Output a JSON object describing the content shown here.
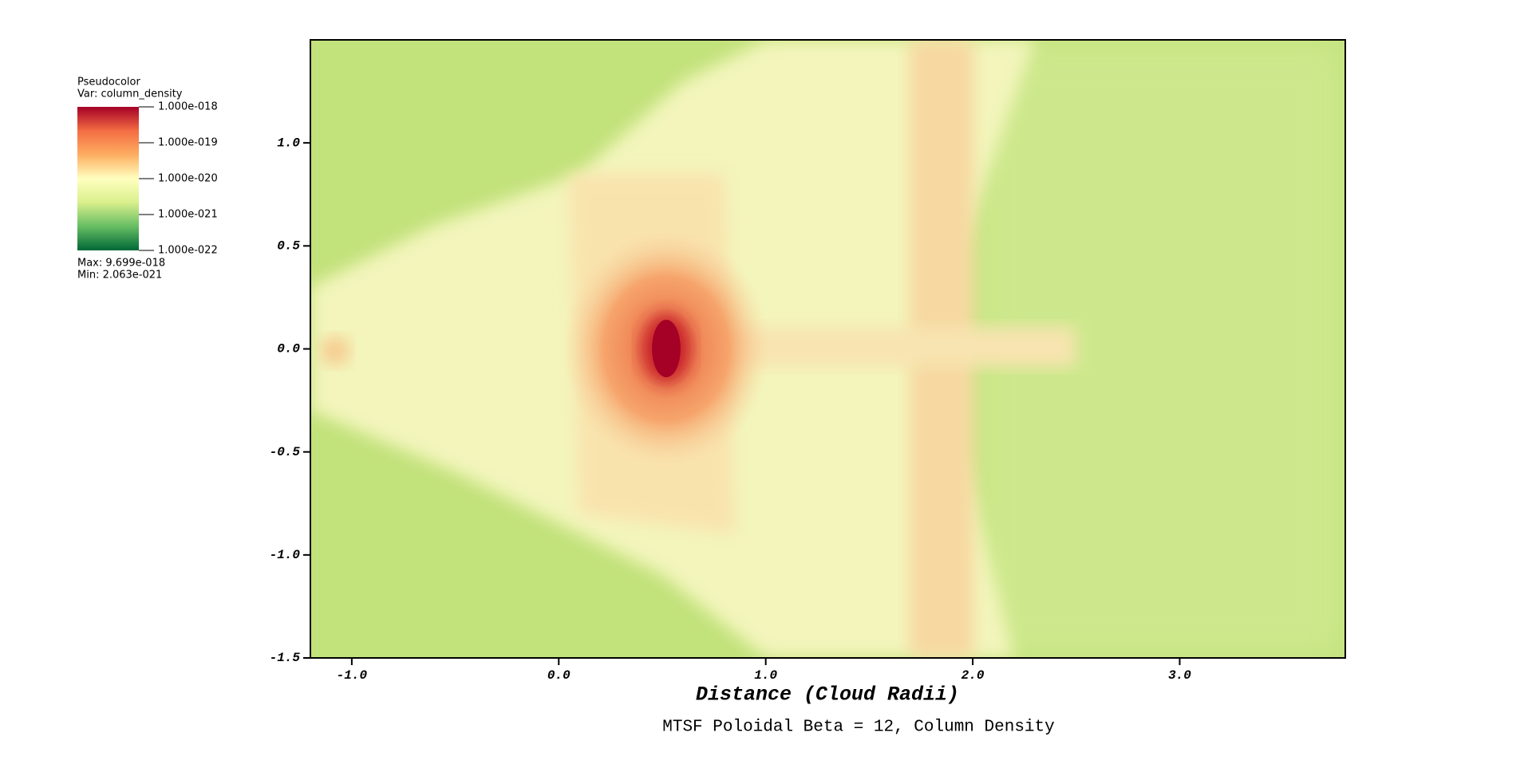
{
  "chart_data": {
    "type": "pseudocolor",
    "title": "MTSF Poloidal Beta = 12, Column Density",
    "x_label": "Distance (Cloud Radii)",
    "xlim": [
      -1.2,
      3.8
    ],
    "ylim": [
      -1.5,
      1.5
    ],
    "xticks": [
      {
        "value": -1,
        "label": "-1.0"
      },
      {
        "value": 0,
        "label": "0.0"
      },
      {
        "value": 1,
        "label": "1.0"
      },
      {
        "value": 2,
        "label": "2.0"
      },
      {
        "value": 3,
        "label": "3.0"
      }
    ],
    "yticks": [
      {
        "value": -1.5,
        "label": "-1.5"
      },
      {
        "value": -1,
        "label": "-1.0"
      },
      {
        "value": -0.5,
        "label": "-0.5"
      },
      {
        "value": 0,
        "label": "0.0"
      },
      {
        "value": 0.5,
        "label": "0.5"
      },
      {
        "value": 1,
        "label": "1.0"
      }
    ],
    "legend": {
      "title": "Pseudocolor",
      "variable": "Var: column_density",
      "log_scale": true,
      "clim": [
        1e-22,
        1e-18
      ],
      "ticks": [
        {
          "value": 1e-18,
          "label": "1.000e-018"
        },
        {
          "value": 1e-19,
          "label": "1.000e-019"
        },
        {
          "value": 1e-20,
          "label": "1.000e-020"
        },
        {
          "value": 1e-21,
          "label": "1.000e-021"
        },
        {
          "value": 1e-22,
          "label": "1.000e-022"
        }
      ],
      "colormap": [
        "#006837",
        "#66bd63",
        "#d9ef8b",
        "#ffffbf",
        "#fdae61",
        "#f46d43",
        "#a50026"
      ],
      "max": {
        "value": 9.699e-18,
        "label": "Max:  9.699e-018"
      },
      "min": {
        "value": 2.063e-21,
        "label": "Min:  2.063e-021"
      }
    }
  }
}
